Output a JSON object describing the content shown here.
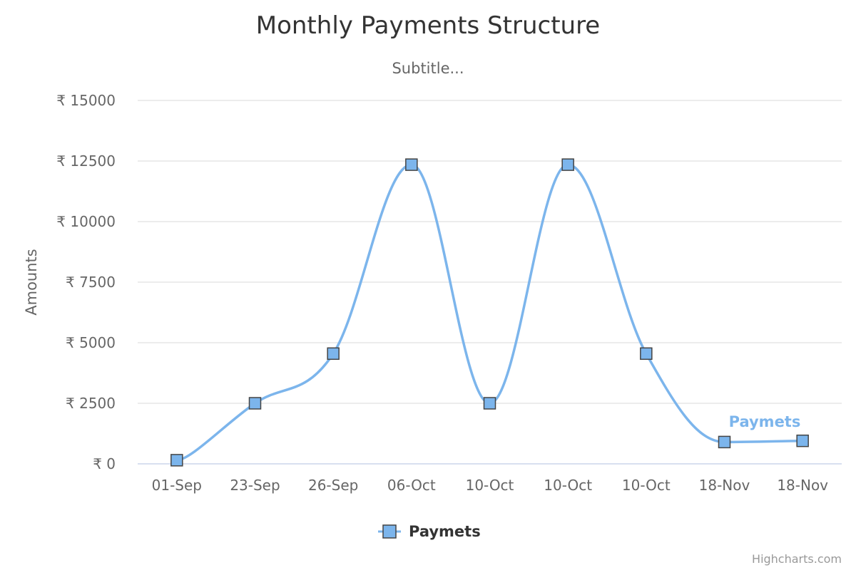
{
  "chart_data": {
    "type": "line",
    "title": "Monthly Payments Structure",
    "subtitle": "Subtitle...",
    "ylabel": "Amounts",
    "xlabel": "",
    "categories": [
      "01-Sep",
      "23-Sep",
      "26-Sep",
      "06-Oct",
      "10-Oct",
      "10-Oct",
      "10-Oct",
      "18-Nov",
      "18-Nov"
    ],
    "y_ticks": [
      0,
      2500,
      5000,
      7500,
      10000,
      12500,
      15000
    ],
    "y_tick_labels": [
      "₹ 0",
      "₹ 2500",
      "₹ 5000",
      "₹ 7500",
      "₹ 10000",
      "₹ 12500",
      "₹ 15000"
    ],
    "ylim": [
      0,
      15000
    ],
    "grid": true,
    "smooth": true,
    "series": [
      {
        "name": "Paymets",
        "color": "#7cb5ec",
        "marker": "square",
        "values": [
          150,
          2500,
          4550,
          12350,
          2500,
          12350,
          4550,
          900,
          950
        ]
      }
    ],
    "legend": {
      "position": "bottom-center",
      "label": "Paymets"
    },
    "series_label": "Paymets",
    "credits": "Highcharts.com"
  }
}
